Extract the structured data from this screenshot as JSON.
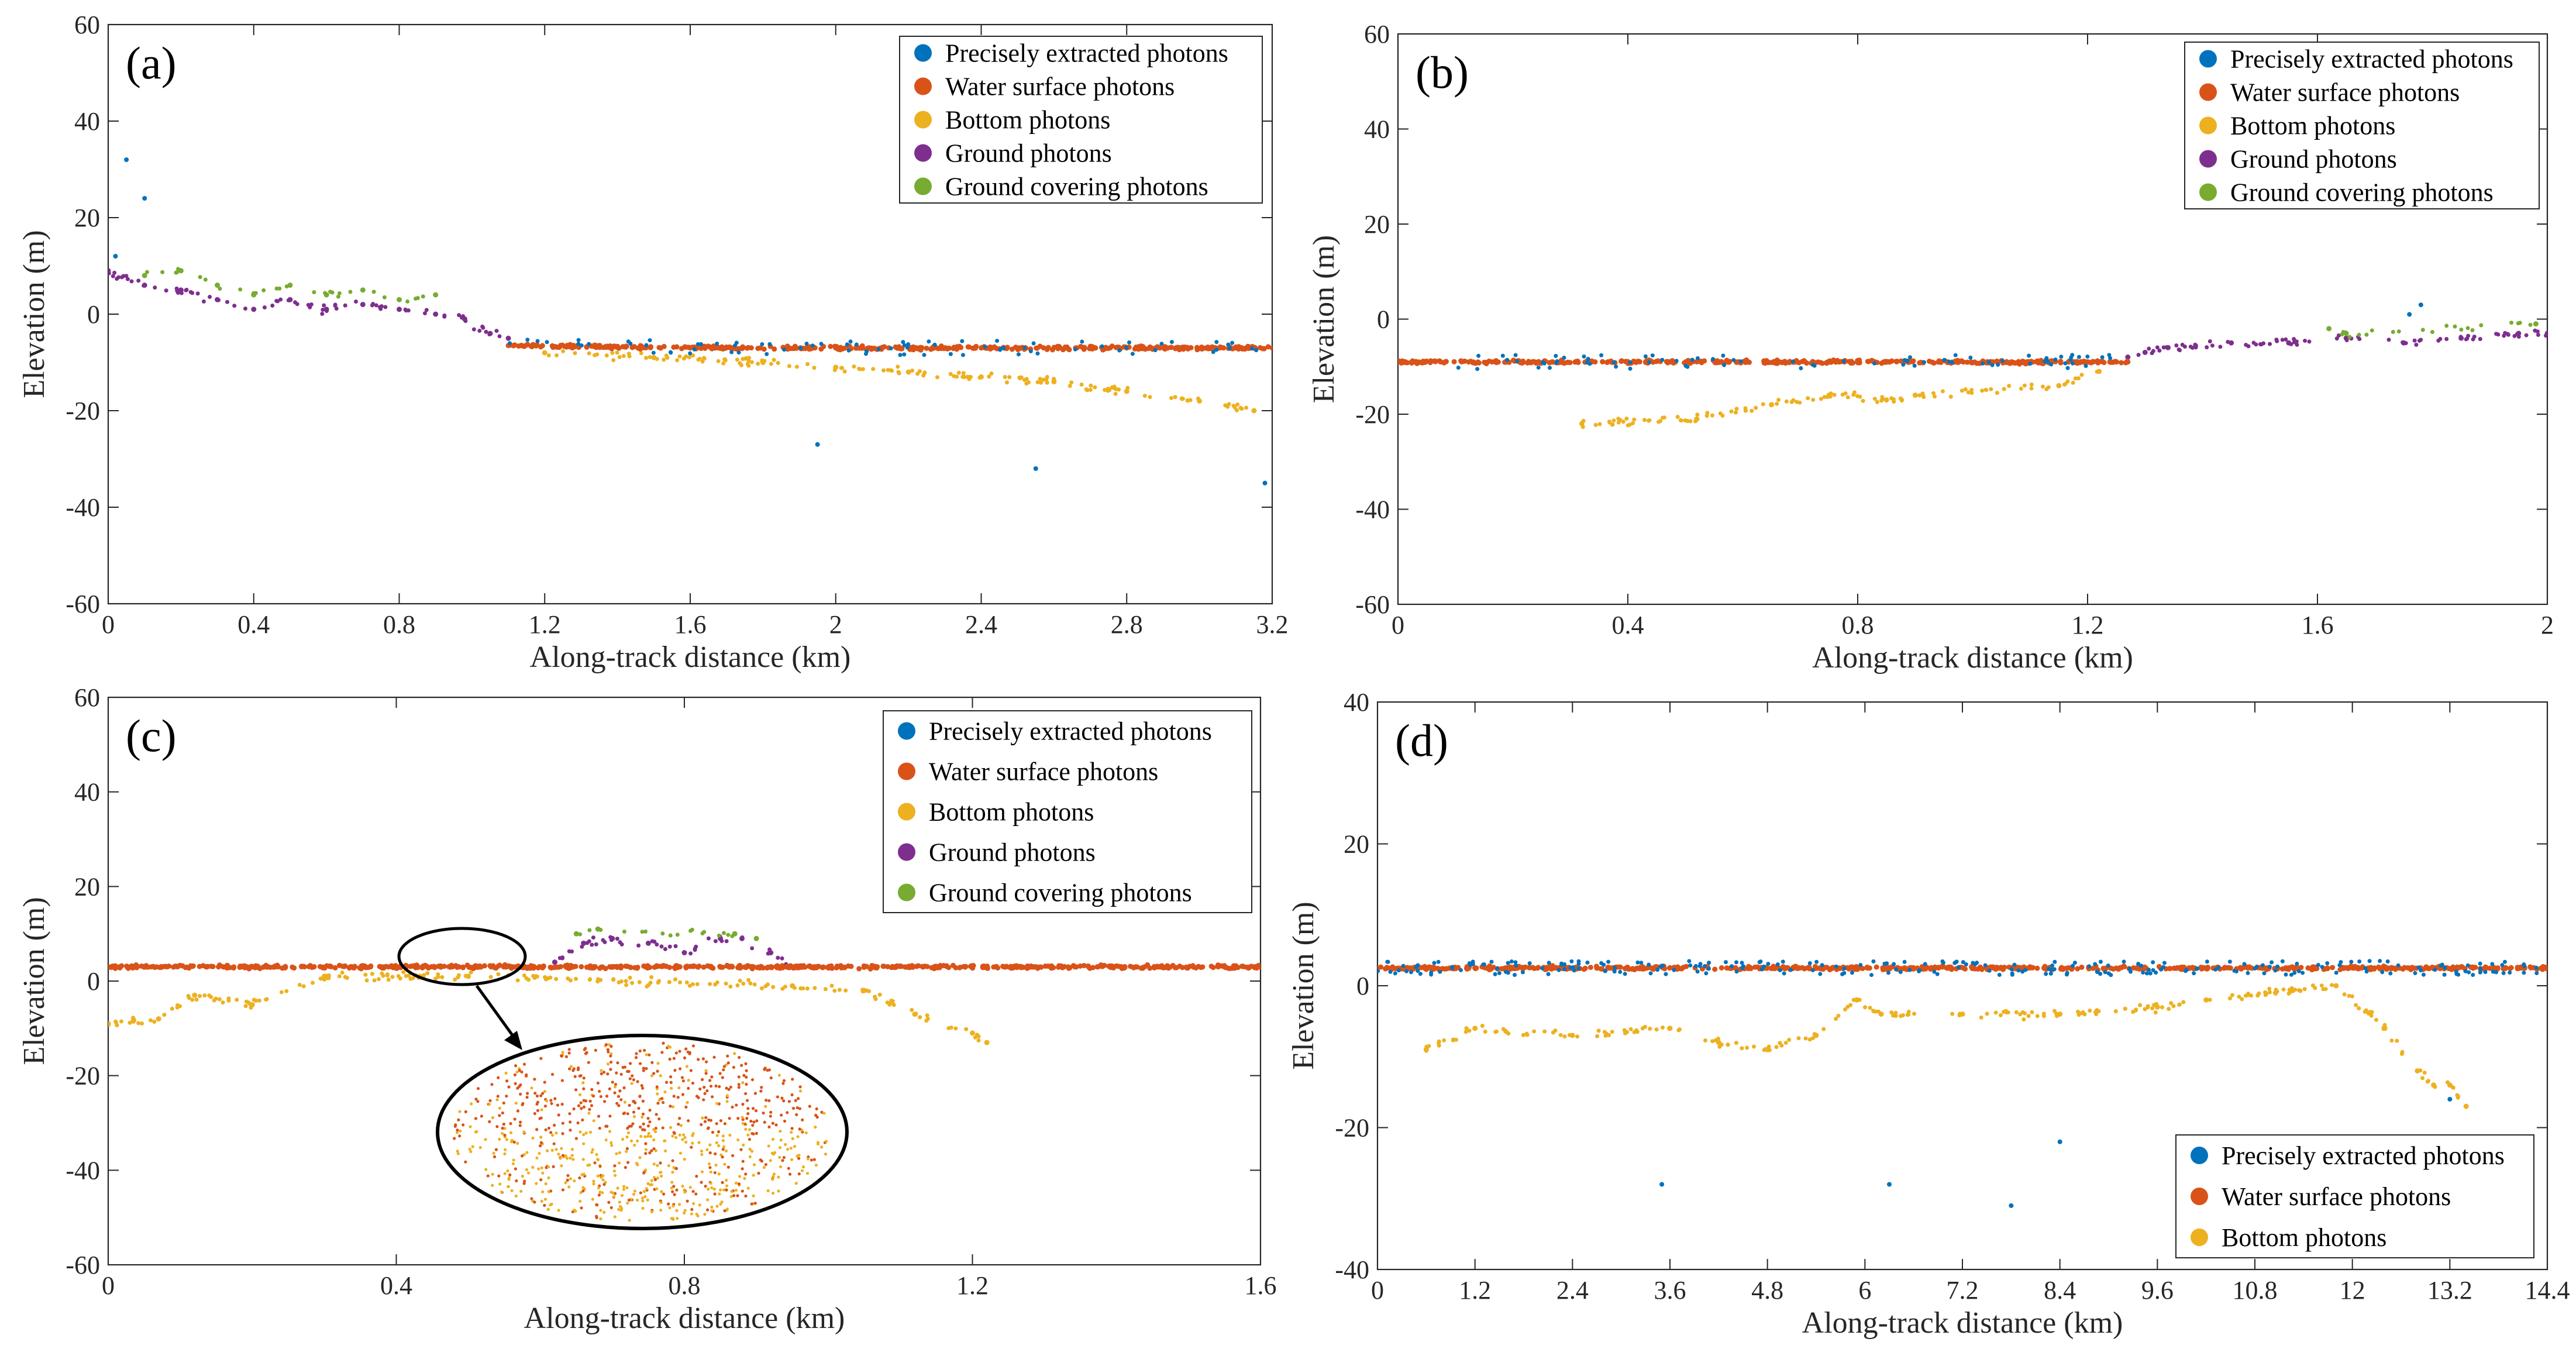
{
  "colors": {
    "precise": "#0072bd",
    "water": "#d95319",
    "bottom": "#edb120",
    "ground": "#7e2f8e",
    "cover": "#77ac30"
  },
  "legend_labels": {
    "precise": "Precisely extracted photons",
    "water": "Water surface photons",
    "bottom": "Bottom photons",
    "ground": "Ground photons",
    "cover": "Ground covering photons"
  },
  "chart_data": [
    {
      "id": "a",
      "type": "scatter",
      "panel_label": "(a)",
      "xlabel": "Along-track distance (km)",
      "ylabel": "Elevation (m)",
      "xlim": [
        0,
        3.2
      ],
      "ylim": [
        -60,
        60
      ],
      "xticks": [
        "0",
        "0.4",
        "0.8",
        "1.2",
        "1.6",
        "2",
        "2.4",
        "2.8",
        "3.2"
      ],
      "yticks": [
        "-60",
        "-40",
        "-20",
        "0",
        "20",
        "40",
        "60"
      ],
      "legend_position": "top-right",
      "legend": [
        "precise",
        "water",
        "bottom",
        "ground",
        "cover"
      ],
      "series": [
        {
          "name": "Ground photons",
          "key": "ground",
          "x": [
            0.0,
            0.1,
            0.2,
            0.3,
            0.4,
            0.5,
            0.6,
            0.7,
            0.8,
            0.9,
            0.98,
            1.05,
            1.1
          ],
          "y": [
            9,
            6,
            5,
            3,
            1,
            3,
            1,
            2,
            1,
            0,
            -1,
            -4,
            -5
          ]
        },
        {
          "name": "Ground covering photons",
          "key": "cover",
          "x": [
            0.1,
            0.2,
            0.3,
            0.4,
            0.5,
            0.6,
            0.7,
            0.8,
            0.9
          ],
          "y": [
            8,
            9,
            6,
            4,
            6,
            4,
            5,
            3,
            4
          ]
        },
        {
          "name": "Water surface photons",
          "key": "water",
          "x": [
            1.1,
            1.6,
            2.0,
            2.4,
            2.8,
            3.2
          ],
          "y": [
            -6.5,
            -7,
            -7,
            -7,
            -7,
            -7
          ]
        },
        {
          "name": "Bottom photons",
          "key": "bottom",
          "x": [
            1.2,
            1.5,
            1.8,
            2.0,
            2.2,
            2.4,
            2.6,
            2.8,
            3.0,
            3.15
          ],
          "y": [
            -8,
            -9,
            -10,
            -11,
            -12,
            -13,
            -14,
            -16,
            -18,
            -20
          ]
        },
        {
          "name": "Precisely extracted photons",
          "key": "precise",
          "x": [
            0.02,
            0.05,
            0.1,
            1.95,
            2.55,
            3.18
          ],
          "y": [
            12,
            32,
            24,
            -27,
            -32,
            -35
          ]
        }
      ]
    },
    {
      "id": "b",
      "type": "scatter",
      "panel_label": "(b)",
      "xlabel": "Along-track distance (km)",
      "ylabel": "Elevation (m)",
      "xlim": [
        0,
        2
      ],
      "ylim": [
        -60,
        60
      ],
      "xticks": [
        "0",
        "0.4",
        "0.8",
        "1.2",
        "1.6",
        "2"
      ],
      "yticks": [
        "-60",
        "-40",
        "-20",
        "0",
        "20",
        "40",
        "60"
      ],
      "legend_position": "top-right",
      "legend": [
        "precise",
        "water",
        "bottom",
        "ground",
        "cover"
      ],
      "series": [
        {
          "name": "Water surface photons",
          "key": "water",
          "x": [
            0.0,
            0.4,
            0.8,
            1.2,
            1.27
          ],
          "y": [
            -9,
            -9,
            -9,
            -9,
            -9
          ]
        },
        {
          "name": "Bottom photons",
          "key": "bottom",
          "x": [
            0.32,
            0.52,
            0.65,
            0.75,
            0.85,
            0.9,
            1.15,
            1.22
          ],
          "y": [
            -22,
            -21,
            -18,
            -16,
            -17,
            -16,
            -14,
            -11
          ]
        },
        {
          "name": "Ground photons",
          "key": "ground",
          "x": [
            1.27,
            1.3,
            1.34,
            1.45,
            1.55,
            1.65,
            1.75,
            1.85,
            1.95,
            2.0
          ],
          "y": [
            -8,
            -7,
            -6,
            -5,
            -5,
            -4,
            -5,
            -4,
            -3,
            -3
          ]
        },
        {
          "name": "Ground covering photons",
          "key": "cover",
          "x": [
            1.62,
            1.65,
            1.98
          ],
          "y": [
            -2,
            -3,
            -1
          ]
        },
        {
          "name": "Precisely extracted photons",
          "key": "precise",
          "x": [
            1.76,
            1.78
          ],
          "y": [
            1,
            3
          ]
        }
      ]
    },
    {
      "id": "c",
      "type": "scatter",
      "panel_label": "(c)",
      "xlabel": "Along-track distance (km)",
      "ylabel": "Elevation (m)",
      "xlim": [
        0,
        1.6
      ],
      "ylim": [
        -60,
        60
      ],
      "xticks": [
        "0",
        "0.4",
        "0.8",
        "1.2",
        "1.6"
      ],
      "yticks": [
        "-60",
        "-40",
        "-20",
        "0",
        "20",
        "40",
        "60"
      ],
      "legend_position": "top-right",
      "legend": [
        "precise",
        "water",
        "bottom",
        "ground",
        "cover"
      ],
      "annotation": "zoomed inset of water surface and bottom photons near 0.4 km",
      "series": [
        {
          "name": "Water surface photons",
          "key": "water",
          "x": [
            0.0,
            0.6,
            0.95,
            1.6
          ],
          "y": [
            3,
            3,
            3,
            3
          ]
        },
        {
          "name": "Bottom photons",
          "key": "bottom",
          "x": [
            0.0,
            0.07,
            0.12,
            0.2,
            0.3,
            0.5,
            0.95,
            1.05,
            1.12,
            1.2,
            1.22
          ],
          "y": [
            -9,
            -8,
            -3,
            -5,
            1,
            1,
            -1,
            -2,
            -7,
            -11,
            -13
          ]
        },
        {
          "name": "Ground photons",
          "key": "ground",
          "x": [
            0.62,
            0.66,
            0.7,
            0.75,
            0.8,
            0.85,
            0.88,
            0.92,
            0.95
          ],
          "y": [
            4,
            8,
            9,
            8,
            6,
            9,
            9,
            6,
            3
          ]
        },
        {
          "name": "Ground covering photons",
          "key": "cover",
          "x": [
            0.65,
            0.68,
            0.87,
            0.9
          ],
          "y": [
            10,
            11,
            10,
            9
          ]
        }
      ]
    },
    {
      "id": "d",
      "type": "scatter",
      "panel_label": "(d)",
      "xlabel": "Along-track distance (km)",
      "ylabel": "Elevation (m)",
      "xlim": [
        0,
        14.4
      ],
      "ylim": [
        -40,
        40
      ],
      "xticks": [
        "0",
        "1.2",
        "2.4",
        "3.6",
        "4.8",
        "6",
        "7.2",
        "8.4",
        "9.6",
        "10.8",
        "12",
        "13.2",
        "14.4"
      ],
      "yticks": [
        "-40",
        "-20",
        "0",
        "20",
        "40"
      ],
      "legend_position": "bottom-right",
      "legend": [
        "precise",
        "water",
        "bottom"
      ],
      "series": [
        {
          "name": "Water surface photons",
          "key": "water",
          "x": [
            0.0,
            5.0,
            10.0,
            10.3,
            10.5,
            14.4
          ],
          "y": [
            2.5,
            2.5,
            2.5,
            2.5,
            2.5,
            2.5
          ]
        },
        {
          "name": "Bottom photons",
          "key": "bottom",
          "x": [
            0.6,
            1.2,
            2.4,
            3.6,
            4.2,
            4.8,
            5.4,
            5.9,
            6.2,
            7.2,
            8.4,
            9.6,
            10.2,
            11.8,
            12.4,
            12.8,
            13.0,
            13.2,
            13.4
          ],
          "y": [
            -9,
            -6,
            -7,
            -6,
            -8,
            -9,
            -7,
            -2,
            -4,
            -4,
            -4,
            -3,
            -2,
            0,
            -6,
            -12,
            -14,
            -14,
            -17
          ]
        },
        {
          "name": "Precisely extracted photons",
          "key": "precise",
          "x": [
            3.5,
            6.3,
            7.8,
            8.4,
            13.2
          ],
          "y": [
            -28,
            -28,
            -31,
            -22,
            -16
          ]
        }
      ]
    }
  ]
}
